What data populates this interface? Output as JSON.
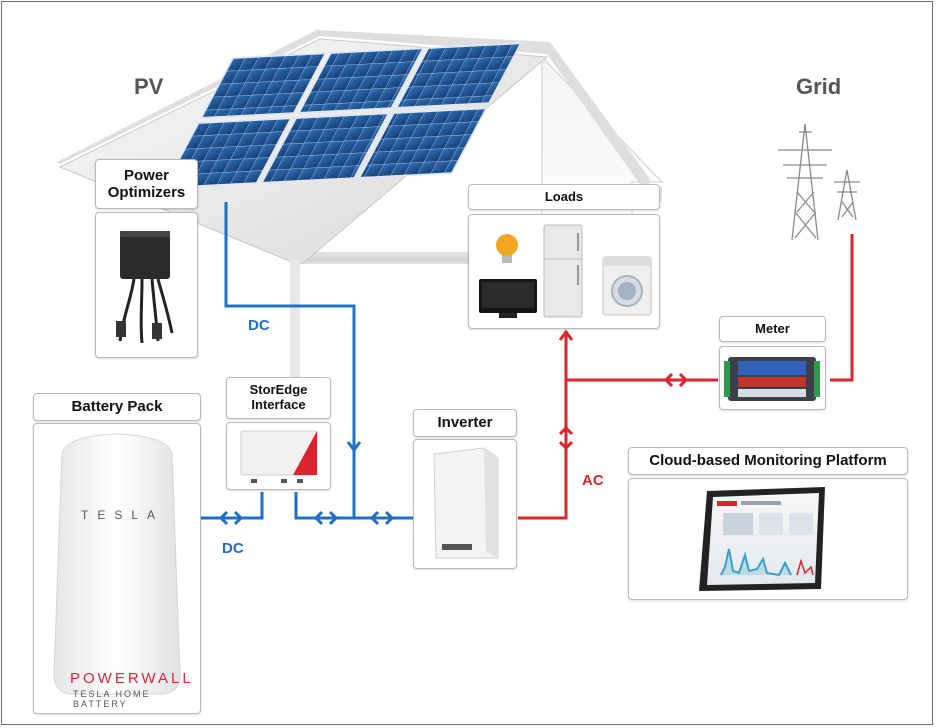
{
  "labels": {
    "pv": "PV",
    "grid": "Grid",
    "power_optimizers": "Power Optimizers",
    "loads": "Loads",
    "meter": "Meter",
    "battery_pack": "Battery Pack",
    "storedge_line1": "StorEdge",
    "storedge_line2": "Interface",
    "inverter": "Inverter",
    "cloud_platform": "Cloud-based Monitoring Platform",
    "dc_upper": "DC",
    "dc_lower": "DC",
    "ac": "AC"
  },
  "battery": {
    "brand": "TESLA",
    "product": "POWERWALL",
    "subtitle": "TESLA HOME BATTERY"
  },
  "colors": {
    "dc_line": "#1f6fc3",
    "ac_line": "#d9252b",
    "panel": "#1e4f8c",
    "roof": "#eeeeee"
  }
}
